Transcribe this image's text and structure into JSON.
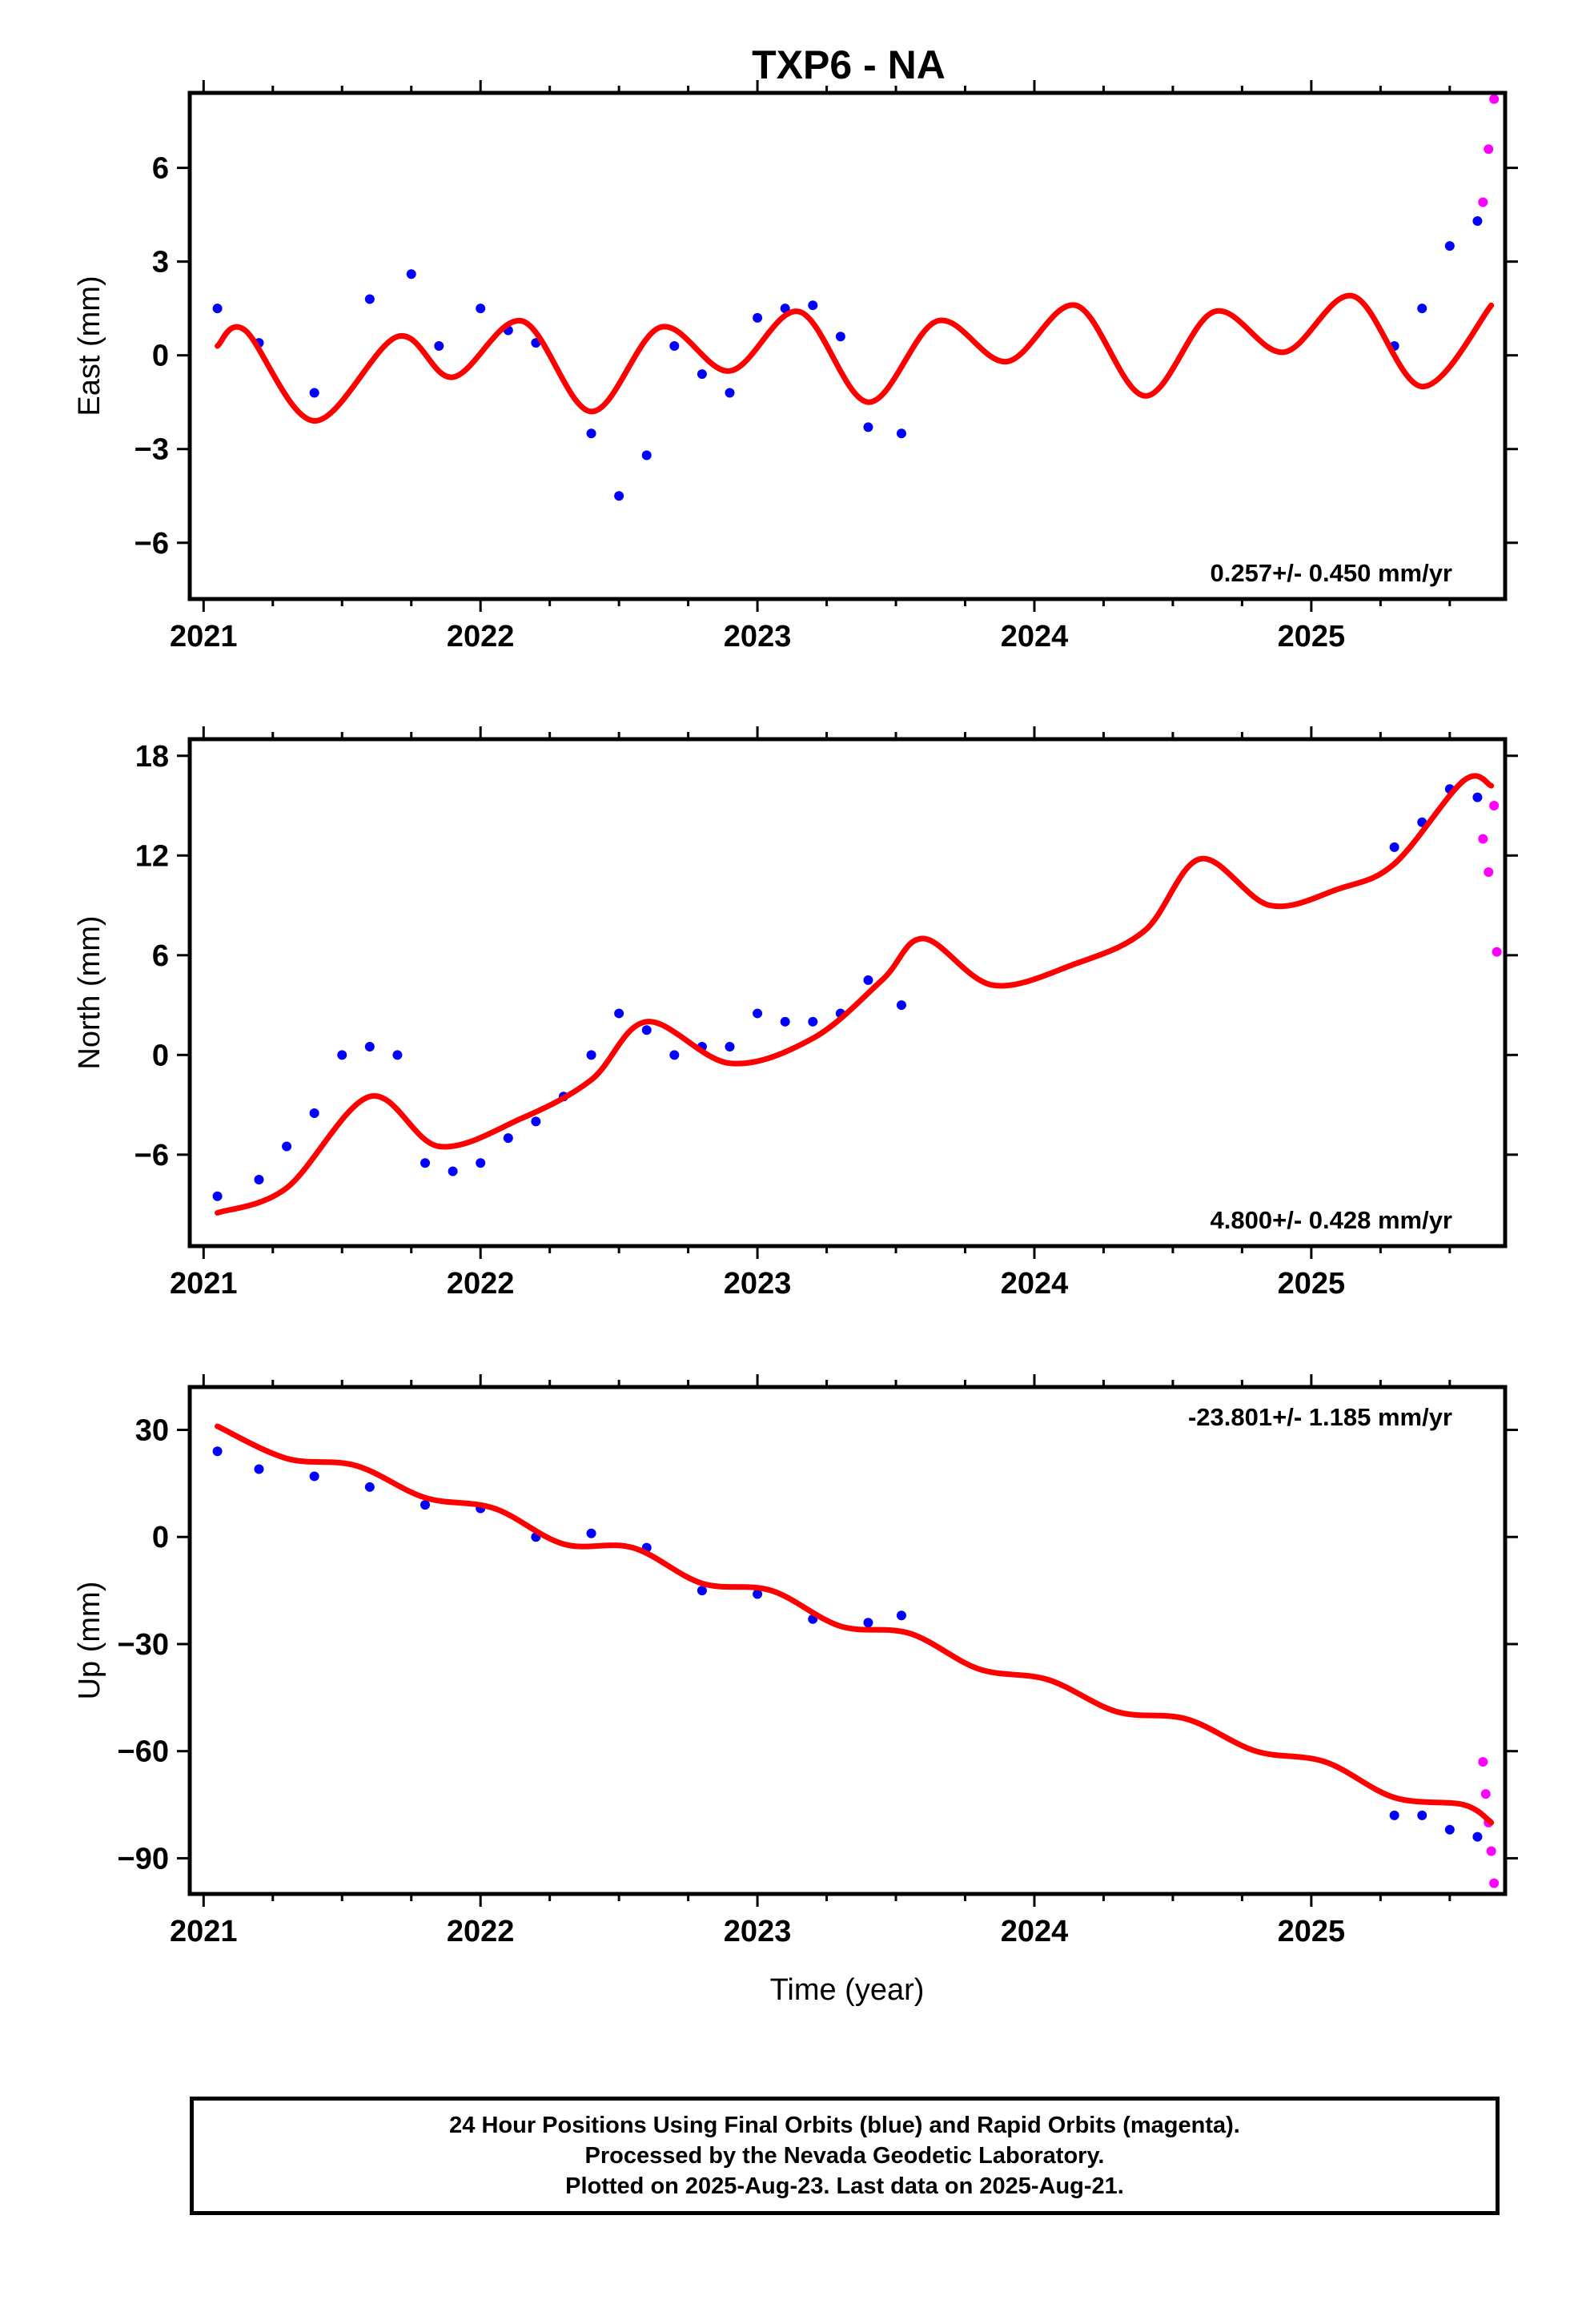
{
  "title": "TXP6 - NA",
  "xlabel": "Time (year)",
  "footer": {
    "line1": "24 Hour Positions Using Final Orbits (blue) and Rapid Orbits (magenta).",
    "line2": "Processed by the Nevada Geodetic Laboratory.",
    "line3": "Plotted on 2025-Aug-23. Last data on 2025-Aug-21."
  },
  "colors": {
    "final": "#0000ff",
    "rapid": "#ff00ff",
    "model": "#ff0000"
  },
  "chart_data": [
    {
      "type": "scatter",
      "ylabel": "East (mm)",
      "rate_label": "0.257+/- 0.450 mm/yr",
      "rate_position": "bottom-right",
      "xlim": [
        2020.95,
        2025.7
      ],
      "ylim": [
        -7.8,
        8.4
      ],
      "xticks": [
        2021,
        2022,
        2023,
        2024,
        2025
      ],
      "xtick_labels": [
        "2021",
        "2022",
        "2023",
        "2024",
        "2025"
      ],
      "yticks": [
        -6,
        -3,
        0,
        3,
        6
      ],
      "ytick_labels": [
        "−6",
        "−3",
        "0",
        "3",
        "6"
      ],
      "series": [
        {
          "x": [
            2021.05,
            2021.2,
            2021.4,
            2021.6,
            2021.75,
            2021.85,
            2022.0,
            2022.1,
            2022.2,
            2022.4,
            2022.5,
            2022.6,
            2022.7,
            2022.8,
            2022.9,
            2023.0,
            2023.1,
            2023.2,
            2023.3,
            2023.4,
            2023.52,
            2025.3,
            2025.4,
            2025.5,
            2025.6
          ],
          "y": [
            1.5,
            0.4,
            -1.2,
            1.8,
            2.6,
            0.3,
            1.5,
            0.8,
            0.4,
            -2.5,
            -4.5,
            -3.2,
            0.3,
            -0.6,
            -1.2,
            1.2,
            1.5,
            1.6,
            0.6,
            -2.3,
            -2.5,
            0.3,
            1.5,
            3.5,
            4.3
          ]
        },
        {
          "x": [
            2025.62,
            2025.64,
            2025.66
          ],
          "y": [
            4.9,
            6.6,
            8.2
          ]
        },
        {
          "x": [
            2021.05,
            2021.15,
            2021.4,
            2021.7,
            2021.9,
            2022.15,
            2022.4,
            2022.65,
            2022.9,
            2023.15,
            2023.4,
            2023.65,
            2023.9,
            2024.15,
            2024.4,
            2024.65,
            2024.9,
            2025.15,
            2025.4,
            2025.65
          ],
          "y": [
            0.3,
            0.8,
            -2.1,
            0.6,
            -0.7,
            1.1,
            -1.8,
            0.9,
            -0.5,
            1.4,
            -1.5,
            1.1,
            -0.2,
            1.6,
            -1.3,
            1.4,
            0.1,
            1.9,
            -1.0,
            1.6
          ]
        }
      ]
    },
    {
      "type": "scatter",
      "ylabel": "North (mm)",
      "rate_label": "4.800+/- 0.428 mm/yr",
      "rate_position": "bottom-right",
      "xlim": [
        2020.95,
        2025.7
      ],
      "ylim": [
        -11.5,
        19.0
      ],
      "xticks": [
        2021,
        2022,
        2023,
        2024,
        2025
      ],
      "xtick_labels": [
        "2021",
        "2022",
        "2023",
        "2024",
        "2025"
      ],
      "yticks": [
        -6,
        0,
        6,
        12,
        18
      ],
      "ytick_labels": [
        "−6",
        "0",
        "6",
        "12",
        "18"
      ],
      "series": [
        {
          "x": [
            2021.05,
            2021.2,
            2021.3,
            2021.4,
            2021.5,
            2021.6,
            2021.7,
            2021.8,
            2021.9,
            2022.0,
            2022.1,
            2022.2,
            2022.3,
            2022.4,
            2022.5,
            2022.6,
            2022.7,
            2022.8,
            2022.9,
            2023.0,
            2023.1,
            2023.2,
            2023.3,
            2023.4,
            2023.52,
            2025.3,
            2025.4,
            2025.5,
            2025.6
          ],
          "y": [
            -8.5,
            -7.5,
            -5.5,
            -3.5,
            0.0,
            0.5,
            0.0,
            -6.5,
            -7.0,
            -6.5,
            -5.0,
            -4.0,
            -2.5,
            0.0,
            2.5,
            1.5,
            0.0,
            0.5,
            0.5,
            2.5,
            2.0,
            2.0,
            2.5,
            4.5,
            3.0,
            12.5,
            14.0,
            16.0,
            15.5
          ]
        },
        {
          "x": [
            2025.62,
            2025.64,
            2025.66,
            2025.67
          ],
          "y": [
            13.0,
            11.0,
            15.0,
            6.2
          ]
        },
        {
          "x": [
            2021.05,
            2021.3,
            2021.6,
            2021.85,
            2022.15,
            2022.4,
            2022.6,
            2022.9,
            2023.2,
            2023.45,
            2023.6,
            2023.85,
            2024.15,
            2024.4,
            2024.6,
            2024.85,
            2025.1,
            2025.3,
            2025.55,
            2025.65
          ],
          "y": [
            -9.5,
            -8.0,
            -2.5,
            -5.5,
            -3.8,
            -1.5,
            2.0,
            -0.5,
            1.0,
            4.5,
            7.0,
            4.2,
            5.5,
            7.5,
            11.8,
            9.0,
            10.0,
            11.5,
            16.5,
            16.2
          ]
        }
      ]
    },
    {
      "type": "scatter",
      "ylabel": "Up (mm)",
      "rate_label": "-23.801+/- 1.185 mm/yr",
      "rate_position": "top-right",
      "xlim": [
        2020.95,
        2025.7
      ],
      "ylim": [
        -100,
        42
      ],
      "xticks": [
        2021,
        2022,
        2023,
        2024,
        2025
      ],
      "xtick_labels": [
        "2021",
        "2022",
        "2023",
        "2024",
        "2025"
      ],
      "yticks": [
        -90,
        -60,
        -30,
        0,
        30
      ],
      "ytick_labels": [
        "−90",
        "−60",
        "−30",
        "0",
        "30"
      ],
      "series": [
        {
          "x": [
            2021.05,
            2021.2,
            2021.4,
            2021.6,
            2021.8,
            2022.0,
            2022.2,
            2022.4,
            2022.6,
            2022.8,
            2023.0,
            2023.2,
            2023.4,
            2023.52,
            2025.3,
            2025.4,
            2025.5,
            2025.6
          ],
          "y": [
            24,
            19,
            17,
            14,
            9,
            8,
            0,
            1,
            -3,
            -15,
            -16,
            -23,
            -24,
            -22,
            -78,
            -78,
            -82,
            -84
          ]
        },
        {
          "x": [
            2025.62,
            2025.63,
            2025.64,
            2025.65,
            2025.66
          ],
          "y": [
            -63,
            -72,
            -80,
            -88,
            -97
          ]
        },
        {
          "x": [
            2021.05,
            2021.3,
            2021.55,
            2021.8,
            2022.05,
            2022.3,
            2022.55,
            2022.8,
            2023.05,
            2023.3,
            2023.55,
            2023.8,
            2024.05,
            2024.3,
            2024.55,
            2024.8,
            2025.05,
            2025.3,
            2025.55,
            2025.65
          ],
          "y": [
            31,
            22,
            20,
            11,
            8,
            -2,
            -3,
            -13,
            -15,
            -25,
            -27,
            -37,
            -40,
            -49,
            -51,
            -60,
            -63,
            -73,
            -75,
            -80
          ]
        }
      ]
    }
  ]
}
